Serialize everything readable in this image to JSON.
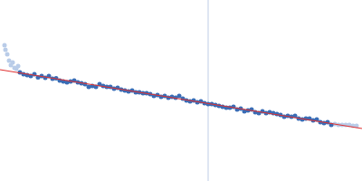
{
  "chart_data": {
    "type": "scatter",
    "xlim": [
      0,
      400
    ],
    "ylim": [
      0,
      200
    ],
    "grid": false,
    "tick_labels": false,
    "series": [
      {
        "type": "line",
        "color": "#c9d5ea",
        "x": [
          230,
          230
        ],
        "values": [
          0,
          200
        ]
      },
      {
        "type": "scatter",
        "color": "#b9cce8",
        "x": [
          5,
          6,
          8,
          10,
          12,
          14,
          16,
          18,
          20,
          370,
          374,
          378,
          382,
          386,
          390,
          394
        ],
        "values": [
          150,
          145,
          140,
          133,
          128,
          131,
          125,
          124,
          127,
          63,
          62,
          62,
          62,
          62,
          61,
          61
        ]
      },
      {
        "type": "scatter",
        "color": "#3a6cb5",
        "x": [
          22,
          26,
          30,
          34,
          38,
          42,
          46,
          50,
          54,
          58,
          62,
          66,
          70,
          74,
          78,
          82,
          86,
          90,
          94,
          98,
          102,
          106,
          110,
          114,
          118,
          122,
          126,
          130,
          134,
          138,
          142,
          146,
          150,
          154,
          158,
          162,
          166,
          170,
          174,
          178,
          182,
          186,
          190,
          194,
          198,
          202,
          206,
          210,
          214,
          218,
          222,
          226,
          230,
          234,
          238,
          242,
          246,
          250,
          254,
          258,
          262,
          266,
          270,
          274,
          278,
          282,
          286,
          290,
          294,
          298,
          302,
          306,
          310,
          314,
          318,
          322,
          326,
          330,
          334,
          338,
          342,
          346,
          350,
          354,
          358,
          362,
          366
        ],
        "values": [
          120,
          118,
          117,
          116,
          118,
          114.5,
          116,
          114,
          116,
          113,
          113.5,
          111,
          110,
          109,
          110,
          111,
          109,
          108,
          107,
          104,
          105,
          104,
          107,
          105,
          104,
          104,
          102,
          103,
          101,
          100,
          99,
          100,
          98,
          98,
          97,
          97,
          96,
          94,
          95,
          93,
          94,
          92,
          93,
          92,
          94,
          91,
          89,
          88,
          89,
          87,
          88,
          86,
          85,
          85,
          84,
          83,
          82,
          81,
          81,
          82,
          79,
          80,
          77,
          78,
          79,
          76,
          75,
          77,
          75,
          76,
          75,
          74,
          73,
          71,
          72,
          71,
          72,
          69,
          68,
          69,
          69,
          67,
          68,
          65,
          64,
          65,
          62
        ]
      },
      {
        "type": "line",
        "color": "#e03131",
        "x": [
          0,
          400
        ],
        "values": [
          123,
          58
        ]
      }
    ]
  }
}
